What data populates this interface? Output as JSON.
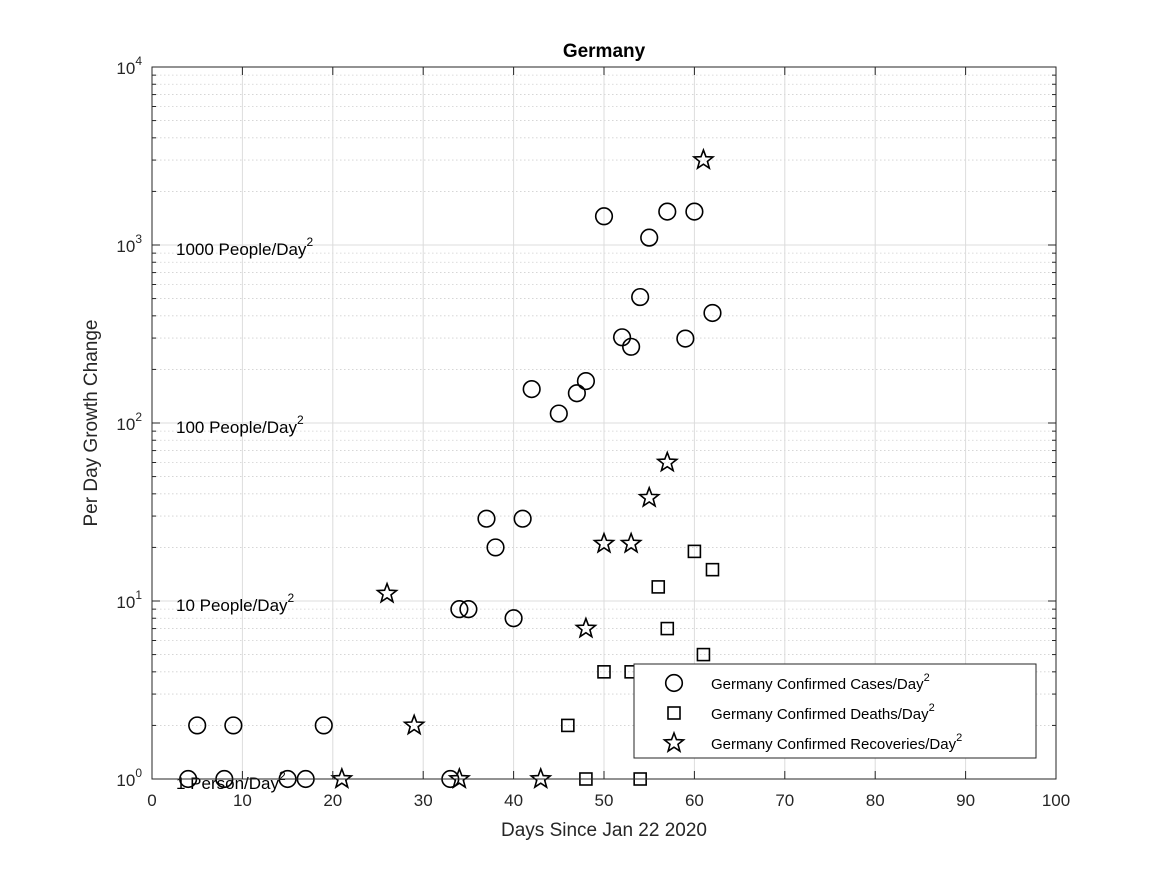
{
  "chart_data": {
    "type": "scatter",
    "title": "Germany",
    "xlabel": "Days Since Jan 22 2020",
    "ylabel": "Per Day Growth Change",
    "xlim": [
      0,
      100
    ],
    "ylim": [
      1,
      10000
    ],
    "yscale": "log",
    "grid": true,
    "minor_grid": true,
    "x_ticks": [
      0,
      10,
      20,
      30,
      40,
      50,
      60,
      70,
      80,
      90,
      100
    ],
    "y_ticks": [
      {
        "value": 1,
        "base": "10",
        "exp": "0"
      },
      {
        "value": 10,
        "base": "10",
        "exp": "1"
      },
      {
        "value": 100,
        "base": "10",
        "exp": "2"
      },
      {
        "value": 1000,
        "base": "10",
        "exp": "3"
      },
      {
        "value": 10000,
        "base": "10",
        "exp": "4"
      }
    ],
    "reference_labels": [
      {
        "value": 1000,
        "text": "1000 People/Day",
        "sup": "2"
      },
      {
        "value": 100,
        "text": "100 People/Day",
        "sup": "2"
      },
      {
        "value": 10,
        "text": "10 People/Day",
        "sup": "2"
      },
      {
        "value": 1,
        "text": "1 Person/Day",
        "sup": "2"
      }
    ],
    "legend_position": "lower-right",
    "series": [
      {
        "name": "Germany Confirmed Cases/Day",
        "name_sup": "2",
        "marker": "circle",
        "color": "#000000",
        "points": [
          [
            4,
            1
          ],
          [
            5,
            2
          ],
          [
            8,
            1
          ],
          [
            9,
            2
          ],
          [
            15,
            1
          ],
          [
            17,
            1
          ],
          [
            19,
            2
          ],
          [
            33,
            1
          ],
          [
            34,
            9
          ],
          [
            35,
            9
          ],
          [
            37,
            29
          ],
          [
            38,
            20
          ],
          [
            40,
            8
          ],
          [
            41,
            29
          ],
          [
            42,
            155
          ],
          [
            45,
            113
          ],
          [
            47,
            147
          ],
          [
            48,
            172
          ],
          [
            50,
            1450
          ],
          [
            52,
            303
          ],
          [
            53,
            268
          ],
          [
            54,
            510
          ],
          [
            55,
            1100
          ],
          [
            57,
            1540
          ],
          [
            59,
            298
          ],
          [
            60,
            1540
          ],
          [
            62,
            415
          ]
        ]
      },
      {
        "name": "Germany Confirmed Deaths/Day",
        "name_sup": "2",
        "marker": "square",
        "color": "#000000",
        "points": [
          [
            46,
            2
          ],
          [
            48,
            1
          ],
          [
            50,
            4
          ],
          [
            53,
            4
          ],
          [
            54,
            1
          ],
          [
            56,
            12
          ],
          [
            57,
            7
          ],
          [
            60,
            19
          ],
          [
            61,
            5
          ],
          [
            62,
            15
          ]
        ]
      },
      {
        "name": "Germany Confirmed Recoveries/Day",
        "name_sup": "2",
        "marker": "star",
        "color": "#000000",
        "points": [
          [
            21,
            1
          ],
          [
            26,
            11
          ],
          [
            29,
            2
          ],
          [
            34,
            1
          ],
          [
            43,
            1
          ],
          [
            48,
            7
          ],
          [
            50,
            21
          ],
          [
            53,
            21
          ],
          [
            55,
            38
          ],
          [
            57,
            60
          ],
          [
            61,
            3000
          ]
        ]
      }
    ]
  }
}
